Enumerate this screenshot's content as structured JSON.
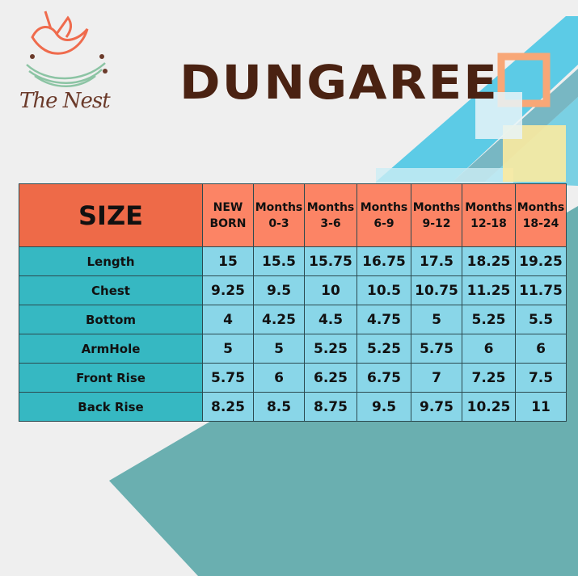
{
  "brand": {
    "logo_text": "The Nest"
  },
  "title": "DUNGAREE",
  "colors": {
    "header": "#fc8465",
    "size_header": "#ee6a48",
    "label_col": "#36b8c2",
    "cells": "#89d6e8",
    "title": "#4a2212"
  },
  "table": {
    "corner": "SIZE",
    "columns": [
      {
        "line1": "NEW",
        "line2": "BORN"
      },
      {
        "line1": "Months",
        "line2": "0-3"
      },
      {
        "line1": "Months",
        "line2": "3-6"
      },
      {
        "line1": "Months",
        "line2": "6-9"
      },
      {
        "line1": "Months",
        "line2": "9-12"
      },
      {
        "line1": "Months",
        "line2": "12-18"
      },
      {
        "line1": "Months",
        "line2": "18-24"
      }
    ],
    "rows": [
      {
        "label": "Length",
        "values": [
          "15",
          "15.5",
          "15.75",
          "16.75",
          "17.5",
          "18.25",
          "19.25"
        ]
      },
      {
        "label": "Chest",
        "values": [
          "9.25",
          "9.5",
          "10",
          "10.5",
          "10.75",
          "11.25",
          "11.75"
        ]
      },
      {
        "label": "Bottom",
        "values": [
          "4",
          "4.25",
          "4.5",
          "4.75",
          "5",
          "5.25",
          "5.5"
        ]
      },
      {
        "label": "ArmHole",
        "values": [
          "5",
          "5",
          "5.25",
          "5.25",
          "5.75",
          "6",
          "6"
        ]
      },
      {
        "label": "Front Rise",
        "values": [
          "5.75",
          "6",
          "6.25",
          "6.75",
          "7",
          "7.25",
          "7.5"
        ]
      },
      {
        "label": "Back Rise",
        "values": [
          "8.25",
          "8.5",
          "8.75",
          "9.5",
          "9.75",
          "10.25",
          "11"
        ]
      }
    ]
  }
}
